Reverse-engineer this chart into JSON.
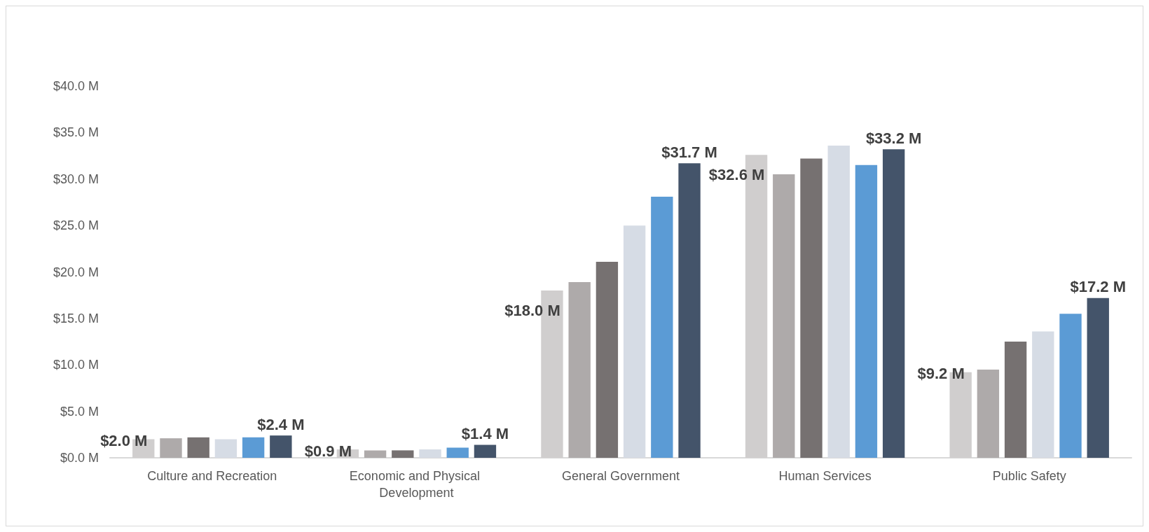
{
  "chart_data": {
    "type": "bar",
    "categories": [
      "Culture and Recreation",
      "Economic and Physical Development",
      "General Government",
      "Human Services",
      "Public Safety"
    ],
    "series": [
      {
        "color": "#d0cece",
        "values": [
          2.0,
          0.9,
          18.0,
          32.6,
          9.2
        ],
        "value_labels": [
          "$2.0 M",
          "$0.9 M",
          "$18.0 M",
          "$32.6 M",
          "$9.2 M"
        ]
      },
      {
        "color": "#aeaaaa",
        "values": [
          2.1,
          0.8,
          18.9,
          30.5,
          9.5
        ]
      },
      {
        "color": "#767171",
        "values": [
          2.2,
          0.8,
          21.1,
          32.2,
          12.5
        ]
      },
      {
        "color": "#d6dce5",
        "values": [
          2.0,
          0.9,
          25.0,
          33.6,
          13.6
        ]
      },
      {
        "color": "#5b9bd5",
        "values": [
          2.2,
          1.1,
          28.1,
          31.5,
          15.5
        ]
      },
      {
        "color": "#44546a",
        "values": [
          2.4,
          1.4,
          31.7,
          33.2,
          17.2
        ],
        "value_labels": [
          "$2.4 M",
          "$1.4 M",
          "$31.7 M",
          "$33.2 M",
          "$17.2 M"
        ]
      }
    ],
    "ylim": [
      0,
      40
    ],
    "yticks": [
      {
        "value": 0,
        "label": "$0.0 M"
      },
      {
        "value": 5,
        "label": "$5.0 M"
      },
      {
        "value": 10,
        "label": "$10.0 M"
      },
      {
        "value": 15,
        "label": "$15.0 M"
      },
      {
        "value": 20,
        "label": "$20.0 M"
      },
      {
        "value": 25,
        "label": "$25.0 M"
      },
      {
        "value": 30,
        "label": "$30.0 M"
      },
      {
        "value": 35,
        "label": "$35.0 M"
      },
      {
        "value": 40,
        "label": "$40.0 M"
      }
    ],
    "grid": false
  }
}
